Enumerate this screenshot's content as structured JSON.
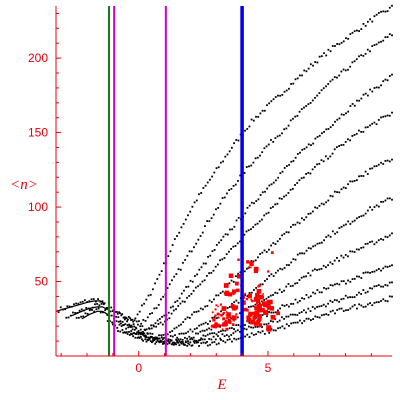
{
  "chart_data": {
    "type": "scatter",
    "title": "",
    "xlabel": "E",
    "ylabel": "<n>",
    "xlim": [
      -3.2,
      9.8
    ],
    "ylim": [
      0,
      235
    ],
    "x_ticks": [
      {
        "value": 0,
        "label": "0"
      },
      {
        "value": 5,
        "label": "5"
      }
    ],
    "y_ticks": [
      {
        "value": 50,
        "label": "50"
      },
      {
        "value": 100,
        "label": "100"
      },
      {
        "value": 150,
        "label": "150"
      },
      {
        "value": 200,
        "label": "200"
      }
    ],
    "vertical_lines": [
      {
        "name": "",
        "x": -1.15,
        "color": "#1a7a1a"
      },
      {
        "name": "",
        "x": -0.95,
        "color": "#d000d0"
      },
      {
        "name": "",
        "x": 1.05,
        "color": "#d000d0"
      },
      {
        "name": "",
        "x": 4.0,
        "color": "#0000ee"
      }
    ],
    "black_series": {
      "color": "#000000",
      "curves": [
        {
          "x": [
            -3.1,
            -2.5,
            -2.0,
            -1.6,
            -1.2,
            -0.8,
            -0.2,
            0.4,
            1.0,
            1.6,
            2.2,
            2.9,
            3.6,
            4.4,
            5.2,
            6.0,
            6.8,
            7.6,
            8.4,
            9.2,
            9.8
          ],
          "y": [
            31,
            34,
            37,
            38,
            33,
            28,
            24,
            40,
            62,
            85,
            104,
            122,
            140,
            158,
            171,
            184,
            197,
            208,
            218,
            228,
            234
          ]
        },
        {
          "x": [
            -2.8,
            -2.3,
            -1.8,
            -1.4,
            -1.0,
            -0.5,
            0.1,
            0.7,
            1.3,
            2.0,
            2.6,
            3.3,
            4.0,
            4.8,
            5.6,
            6.4,
            7.2,
            8.0,
            8.8,
            9.8
          ],
          "y": [
            26,
            30,
            33,
            34,
            30,
            26,
            22,
            33,
            50,
            70,
            88,
            106,
            122,
            138,
            152,
            166,
            180,
            192,
            204,
            216
          ]
        },
        {
          "x": [
            -2.4,
            -2.0,
            -1.6,
            -1.2,
            -0.8,
            -0.2,
            0.4,
            1.0,
            1.6,
            2.3,
            3.0,
            3.8,
            4.6,
            5.4,
            6.2,
            7.0,
            7.8,
            8.6,
            9.8
          ],
          "y": [
            25,
            29,
            31,
            29,
            25,
            21,
            18,
            27,
            40,
            56,
            73,
            90,
            106,
            121,
            135,
            148,
            161,
            173,
            188
          ]
        },
        {
          "x": [
            -1.2,
            -0.8,
            -0.3,
            0.3,
            0.9,
            1.5,
            2.2,
            3.0,
            3.8,
            4.6,
            5.4,
            6.2,
            7.0,
            7.8,
            8.6,
            9.8
          ],
          "y": [
            24,
            22,
            19,
            16,
            22,
            32,
            45,
            60,
            76,
            90,
            104,
            117,
            129,
            141,
            151,
            163
          ]
        },
        {
          "x": [
            -1.0,
            -0.5,
            0.1,
            0.7,
            1.3,
            2.0,
            2.8,
            3.6,
            4.4,
            5.2,
            6.0,
            6.8,
            7.6,
            8.4,
            9.8
          ],
          "y": [
            21,
            19,
            16,
            13,
            17,
            26,
            37,
            50,
            63,
            75,
            87,
            98,
            109,
            119,
            133
          ]
        },
        {
          "x": [
            -0.8,
            -0.2,
            0.4,
            1.0,
            1.7,
            2.5,
            3.3,
            4.1,
            4.9,
            5.7,
            6.5,
            7.3,
            8.1,
            8.9,
            9.8
          ],
          "y": [
            18,
            16,
            13,
            11,
            14,
            21,
            30,
            40,
            51,
            61,
            71,
            80,
            89,
            98,
            106
          ]
        },
        {
          "x": [
            -0.6,
            0.0,
            0.6,
            1.2,
            2.0,
            2.8,
            3.6,
            4.4,
            5.2,
            6.0,
            6.8,
            7.6,
            8.4,
            9.2,
            9.8
          ],
          "y": [
            16,
            14,
            11,
            10,
            13,
            18,
            25,
            33,
            41,
            49,
            57,
            64,
            71,
            77,
            82
          ]
        },
        {
          "x": [
            -0.3,
            0.3,
            0.9,
            1.6,
            2.4,
            3.2,
            4.0,
            4.8,
            5.6,
            6.4,
            7.2,
            8.0,
            8.8,
            9.8
          ],
          "y": [
            14,
            12,
            10,
            9,
            12,
            16,
            21,
            27,
            33,
            39,
            45,
            50,
            55,
            60
          ]
        },
        {
          "x": [
            0.0,
            0.6,
            1.3,
            2.0,
            2.8,
            3.6,
            4.4,
            5.2,
            6.0,
            6.8,
            7.6,
            8.4,
            9.2,
            9.8
          ],
          "y": [
            12,
            10,
            9,
            8,
            11,
            15,
            19,
            23,
            28,
            32,
            37,
            41,
            46,
            49
          ]
        },
        {
          "x": [
            0.3,
            1.0,
            1.7,
            2.5,
            3.3,
            4.1,
            4.9,
            5.7,
            6.5,
            7.3,
            8.1,
            8.9,
            9.8
          ],
          "y": [
            10,
            9,
            8,
            8,
            10,
            13,
            16,
            20,
            24,
            28,
            32,
            35,
            39
          ]
        }
      ],
      "solid_curves": [
        {
          "x": [
            -3.2,
            -2.8,
            -2.4,
            -2.0,
            -1.7,
            -1.5,
            -1.3
          ],
          "y": [
            30,
            32,
            34,
            36,
            37,
            37,
            35
          ]
        },
        {
          "x": [
            -2.6,
            -2.2,
            -1.9,
            -1.6,
            -1.4,
            -1.2
          ],
          "y": [
            27,
            30,
            32,
            33,
            33,
            31
          ]
        },
        {
          "x": [
            -2.2,
            -1.9,
            -1.6,
            -1.4,
            -1.2
          ],
          "y": [
            25,
            28,
            30,
            30,
            28
          ]
        }
      ]
    },
    "red_series": {
      "color": "#ff0000",
      "x_range": [
        2.8,
        5.6
      ],
      "y_range": [
        18,
        75
      ]
    }
  }
}
